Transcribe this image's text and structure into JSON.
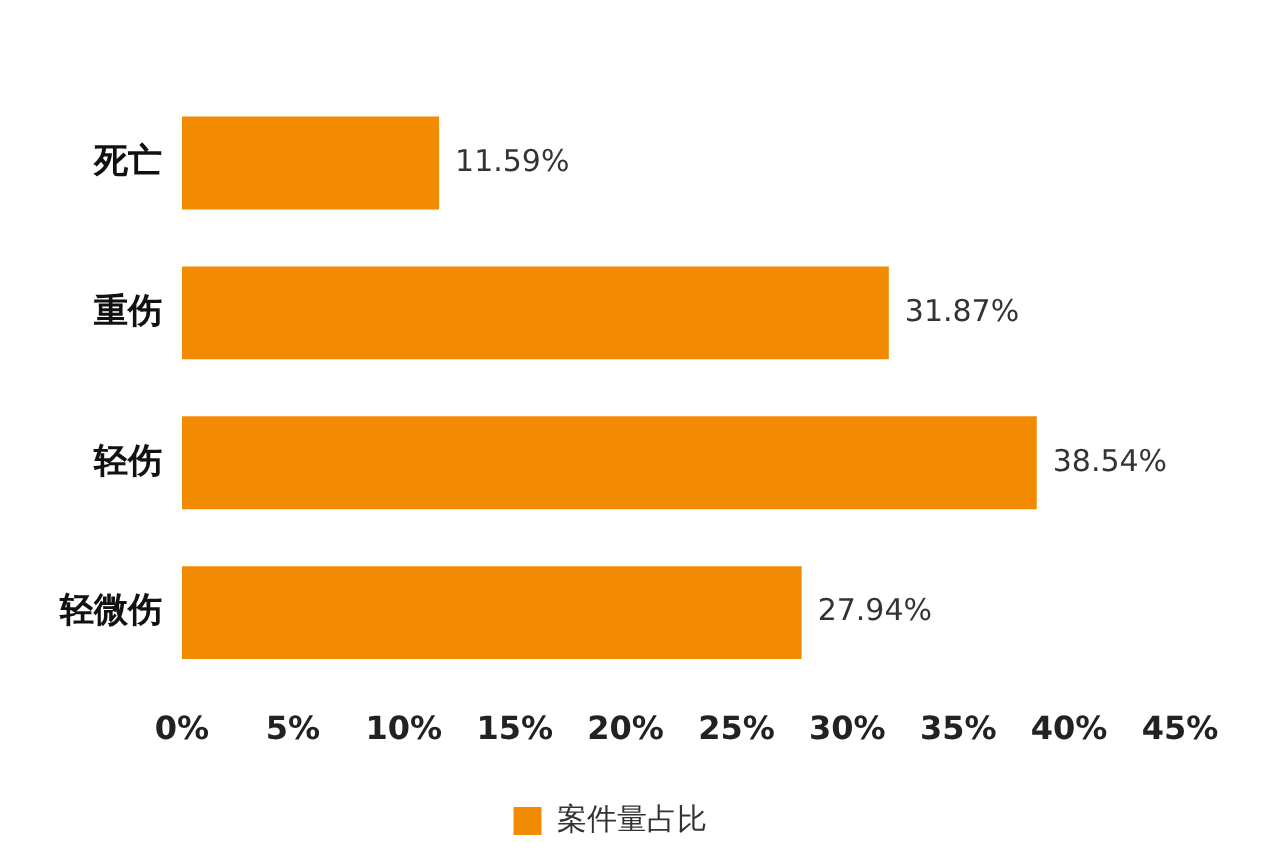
{
  "chart_data": {
    "type": "bar",
    "orientation": "horizontal",
    "categories": [
      "死亡",
      "重伤",
      "轻伤",
      "轻微伤"
    ],
    "series": [
      {
        "name": "案件量占比",
        "color": "#f28a02",
        "values": [
          11.59,
          31.87,
          38.54,
          27.94
        ],
        "value_labels": [
          "11.59%",
          "31.87%",
          "38.54%",
          "27.94%"
        ]
      }
    ],
    "xlim": [
      0,
      45
    ],
    "xticks": [
      {
        "value": 0,
        "label": "0%"
      },
      {
        "value": 5,
        "label": "5%"
      },
      {
        "value": 10,
        "label": "10%"
      },
      {
        "value": 15,
        "label": "15%"
      },
      {
        "value": 20,
        "label": "20%"
      },
      {
        "value": 25,
        "label": "25%"
      },
      {
        "value": 30,
        "label": "30%"
      },
      {
        "value": 35,
        "label": "35%"
      },
      {
        "value": 40,
        "label": "40%"
      },
      {
        "value": 45,
        "label": "45%"
      }
    ],
    "grid": false,
    "legend": "bottom"
  }
}
